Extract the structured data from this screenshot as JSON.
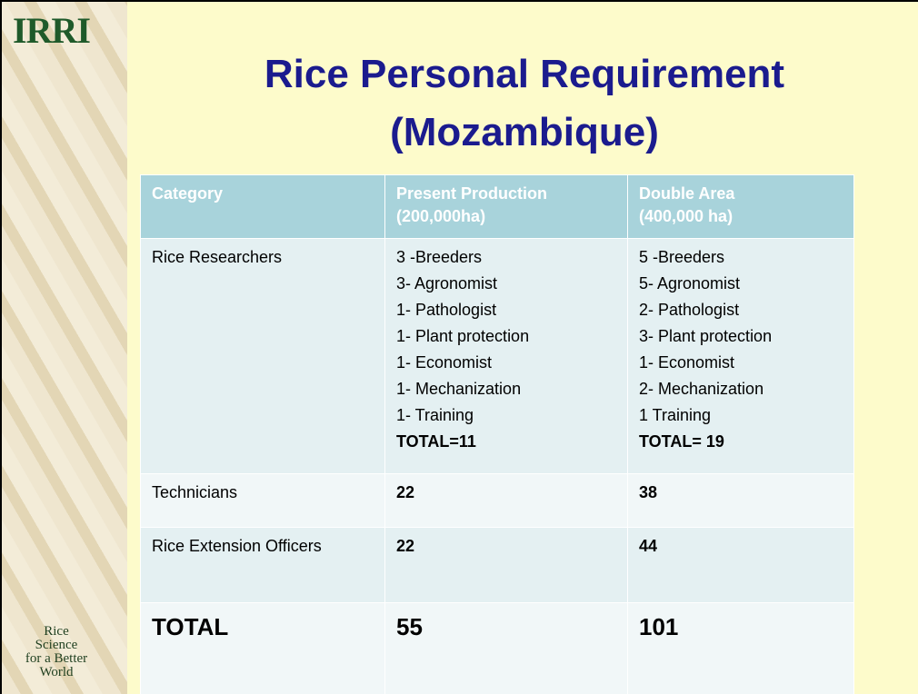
{
  "sidebar": {
    "logo": "IRRI",
    "tagline": [
      "Rice",
      "Science",
      "for a Better",
      "World"
    ]
  },
  "title": [
    "Rice Personal Requirement",
    "(Mozambique)"
  ],
  "table": {
    "header": [
      [
        "Category"
      ],
      [
        "Present Production",
        "(200,000ha)"
      ],
      [
        "Double Area",
        "(400,000 ha)"
      ]
    ],
    "rows": [
      [
        [
          "Rice Researchers"
        ],
        [
          "3 -Breeders",
          "3- Agronomist",
          "1- Pathologist",
          "1- Plant protection",
          "1- Economist",
          "1- Mechanization",
          "1- Training",
          "TOTAL=11"
        ],
        [
          "5 -Breeders",
          "5- Agronomist",
          "2- Pathologist",
          "3- Plant protection",
          "1- Economist",
          "2- Mechanization",
          "1 Training",
          "TOTAL= 19"
        ]
      ],
      [
        [
          "Technicians"
        ],
        [
          "22"
        ],
        [
          "38"
        ]
      ],
      [
        [
          "Rice Extension Officers"
        ],
        [
          "22"
        ],
        [
          "44"
        ]
      ],
      [
        [
          "TOTAL"
        ],
        [
          "55"
        ],
        [
          "101"
        ]
      ]
    ]
  }
}
